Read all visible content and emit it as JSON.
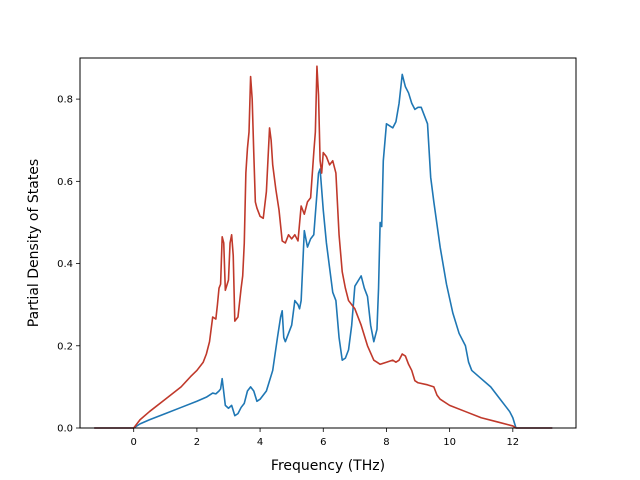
{
  "chart_data": {
    "type": "line",
    "title": "",
    "xlabel": "Frequency (THz)",
    "ylabel": "Partial Density of States",
    "xlim": [
      -1.7,
      14.0
    ],
    "ylim": [
      0,
      0.9
    ],
    "xticks": [
      0,
      2,
      4,
      6,
      8,
      10,
      12
    ],
    "yticks": [
      0.0,
      0.2,
      0.4,
      0.6,
      0.8
    ],
    "grid": false,
    "legend": "none",
    "series": [
      {
        "color": "#1f77b4",
        "x": [
          -1.25,
          0.0,
          0.2,
          0.5,
          1.0,
          1.5,
          2.0,
          2.3,
          2.5,
          2.6,
          2.7,
          2.75,
          2.8,
          2.9,
          3.0,
          3.1,
          3.2,
          3.3,
          3.4,
          3.5,
          3.6,
          3.7,
          3.8,
          3.9,
          4.0,
          4.2,
          4.4,
          4.55,
          4.65,
          4.7,
          4.75,
          4.8,
          4.9,
          5.0,
          5.1,
          5.2,
          5.25,
          5.3,
          5.4,
          5.5,
          5.6,
          5.7,
          5.75,
          5.8,
          5.85,
          5.9,
          6.0,
          6.1,
          6.2,
          6.3,
          6.4,
          6.5,
          6.6,
          6.7,
          6.8,
          6.9,
          7.0,
          7.2,
          7.3,
          7.4,
          7.5,
          7.6,
          7.7,
          7.75,
          7.8,
          7.85,
          7.9,
          8.0,
          8.1,
          8.2,
          8.3,
          8.4,
          8.5,
          8.6,
          8.7,
          8.8,
          8.9,
          9.0,
          9.1,
          9.2,
          9.3,
          9.4,
          9.5,
          9.7,
          9.9,
          10.1,
          10.3,
          10.5,
          10.6,
          10.7,
          11.0,
          11.3,
          11.6,
          11.8,
          11.9,
          12.0,
          12.1,
          12.5,
          13.25
        ],
        "y": [
          0.0,
          0.0,
          0.01,
          0.02,
          0.035,
          0.05,
          0.065,
          0.075,
          0.085,
          0.083,
          0.09,
          0.095,
          0.12,
          0.055,
          0.048,
          0.055,
          0.03,
          0.035,
          0.05,
          0.06,
          0.09,
          0.1,
          0.09,
          0.065,
          0.07,
          0.09,
          0.14,
          0.22,
          0.27,
          0.285,
          0.22,
          0.21,
          0.23,
          0.25,
          0.31,
          0.3,
          0.29,
          0.31,
          0.48,
          0.44,
          0.46,
          0.47,
          0.52,
          0.57,
          0.62,
          0.63,
          0.53,
          0.45,
          0.39,
          0.33,
          0.31,
          0.22,
          0.165,
          0.17,
          0.19,
          0.25,
          0.345,
          0.37,
          0.34,
          0.32,
          0.25,
          0.21,
          0.24,
          0.34,
          0.5,
          0.49,
          0.65,
          0.74,
          0.735,
          0.73,
          0.745,
          0.79,
          0.86,
          0.83,
          0.815,
          0.79,
          0.775,
          0.78,
          0.78,
          0.76,
          0.74,
          0.61,
          0.55,
          0.44,
          0.35,
          0.28,
          0.23,
          0.2,
          0.16,
          0.14,
          0.12,
          0.1,
          0.07,
          0.05,
          0.04,
          0.025,
          0.0,
          0.0,
          0.0
        ]
      },
      {
        "color": "#c0392b",
        "x": [
          -1.25,
          0.0,
          0.2,
          0.5,
          1.0,
          1.5,
          1.8,
          2.0,
          2.2,
          2.3,
          2.4,
          2.5,
          2.6,
          2.65,
          2.7,
          2.75,
          2.8,
          2.85,
          2.9,
          3.0,
          3.05,
          3.1,
          3.15,
          3.2,
          3.3,
          3.4,
          3.45,
          3.5,
          3.55,
          3.6,
          3.65,
          3.7,
          3.75,
          3.8,
          3.85,
          3.9,
          4.0,
          4.1,
          4.2,
          4.3,
          4.35,
          4.4,
          4.5,
          4.6,
          4.7,
          4.8,
          4.9,
          5.0,
          5.1,
          5.2,
          5.3,
          5.4,
          5.5,
          5.6,
          5.7,
          5.75,
          5.8,
          5.85,
          5.9,
          5.95,
          6.0,
          6.1,
          6.2,
          6.3,
          6.4,
          6.5,
          6.6,
          6.7,
          6.8,
          7.0,
          7.2,
          7.4,
          7.6,
          7.7,
          7.8,
          8.0,
          8.2,
          8.3,
          8.4,
          8.5,
          8.6,
          8.7,
          8.8,
          8.9,
          9.0,
          9.3,
          9.5,
          9.6,
          9.7,
          10.0,
          10.5,
          11.0,
          11.5,
          12.0,
          12.1,
          12.5,
          13.25
        ],
        "y": [
          0.0,
          0.0,
          0.02,
          0.04,
          0.07,
          0.1,
          0.125,
          0.14,
          0.16,
          0.18,
          0.21,
          0.27,
          0.265,
          0.3,
          0.34,
          0.35,
          0.465,
          0.45,
          0.335,
          0.36,
          0.45,
          0.47,
          0.42,
          0.26,
          0.27,
          0.34,
          0.37,
          0.45,
          0.62,
          0.68,
          0.72,
          0.855,
          0.8,
          0.67,
          0.55,
          0.535,
          0.515,
          0.51,
          0.575,
          0.73,
          0.7,
          0.64,
          0.58,
          0.53,
          0.455,
          0.45,
          0.47,
          0.46,
          0.47,
          0.455,
          0.54,
          0.52,
          0.55,
          0.56,
          0.67,
          0.72,
          0.88,
          0.81,
          0.65,
          0.62,
          0.67,
          0.66,
          0.64,
          0.65,
          0.62,
          0.47,
          0.38,
          0.34,
          0.31,
          0.29,
          0.25,
          0.2,
          0.165,
          0.16,
          0.155,
          0.16,
          0.165,
          0.16,
          0.165,
          0.18,
          0.175,
          0.155,
          0.14,
          0.115,
          0.11,
          0.105,
          0.1,
          0.08,
          0.07,
          0.055,
          0.04,
          0.025,
          0.015,
          0.005,
          0.0,
          0.0,
          0.0
        ]
      }
    ]
  }
}
